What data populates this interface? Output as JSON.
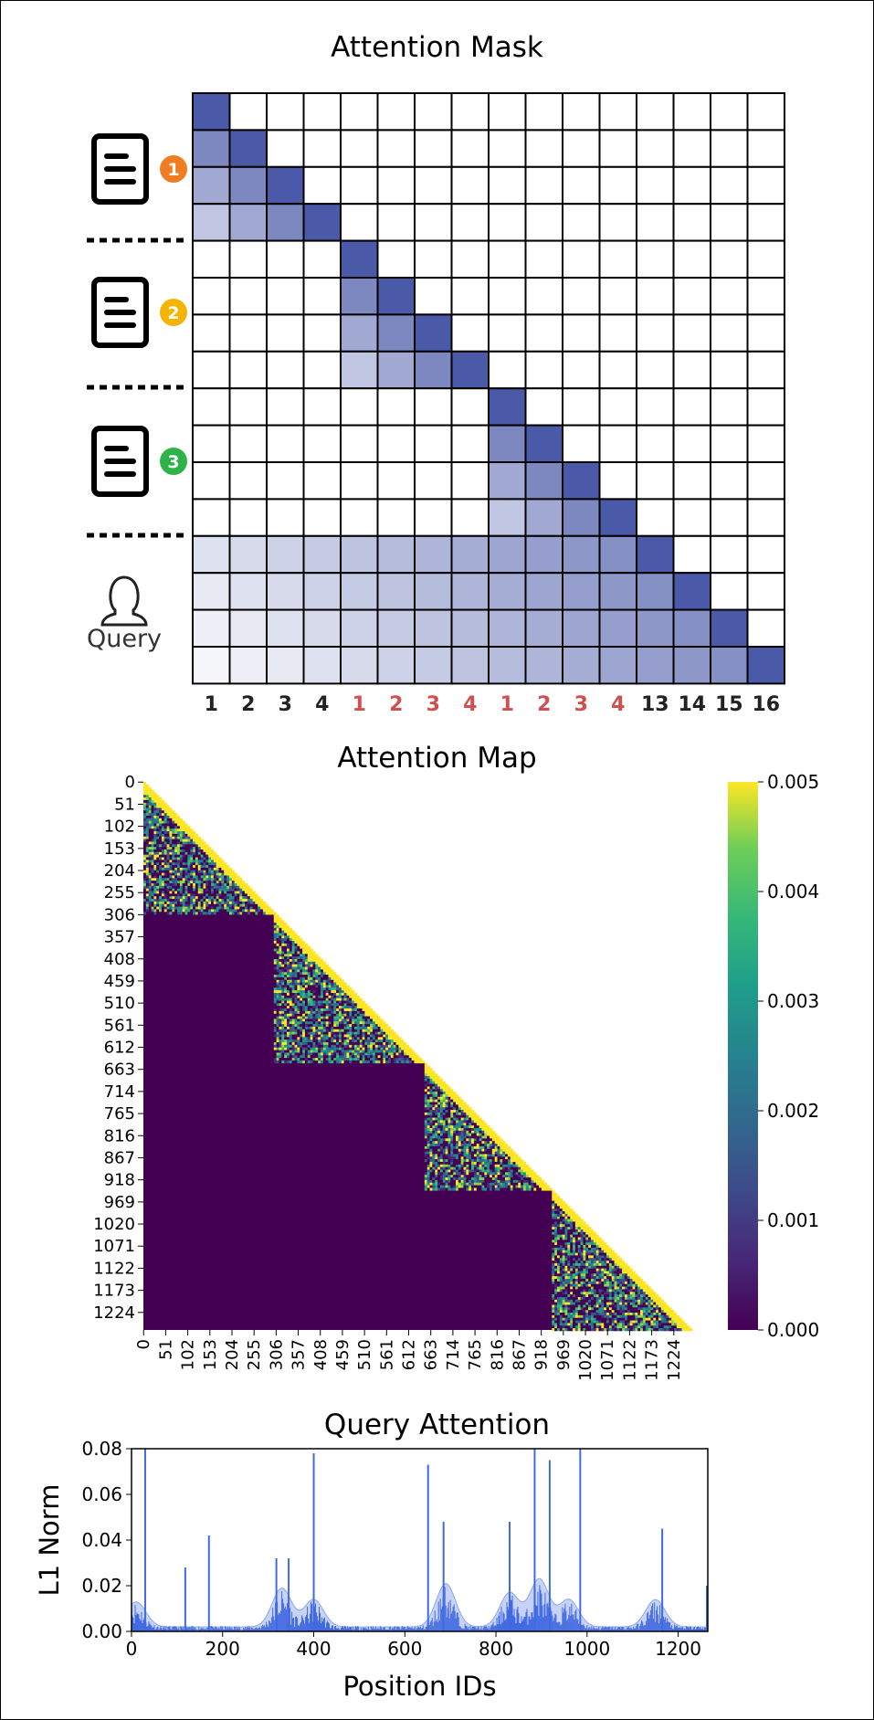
{
  "panels": {
    "mask_title": "Attention Mask",
    "map_title": "Attention Map",
    "query_title": "Query Attention"
  },
  "chart_data": [
    {
      "type": "heatmap",
      "title": "Attention Mask",
      "grid": [
        16,
        16
      ],
      "x_tick_labels": [
        "1",
        "2",
        "3",
        "4",
        "1",
        "2",
        "3",
        "4",
        "1",
        "2",
        "3",
        "4",
        "13",
        "14",
        "15",
        "16"
      ],
      "x_tick_colors": [
        "#222222",
        "#222222",
        "#222222",
        "#222222",
        "#d05050",
        "#d05050",
        "#d05050",
        "#d05050",
        "#d05050",
        "#d05050",
        "#d05050",
        "#d05050",
        "#222222",
        "#222222",
        "#222222",
        "#222222"
      ],
      "row_groups": [
        {
          "label": "1",
          "icon": "document-icon",
          "badge_color": "#f07d22",
          "rows": [
            0,
            3
          ]
        },
        {
          "label": "2",
          "icon": "document-icon",
          "badge_color": "#f4b400",
          "rows": [
            4,
            7
          ]
        },
        {
          "label": "3",
          "icon": "document-icon",
          "badge_color": "#2db34a",
          "rows": [
            8,
            11
          ]
        },
        {
          "label": "Query",
          "icon": "user-icon",
          "rows": [
            12,
            15
          ]
        }
      ],
      "cell_color": "#4a5aa8"
    },
    {
      "type": "heatmap",
      "title": "Attention Map",
      "x_tick_labels": [
        "0",
        "51",
        "102",
        "153",
        "204",
        "255",
        "306",
        "357",
        "408",
        "459",
        "510",
        "561",
        "612",
        "663",
        "714",
        "765",
        "816",
        "867",
        "918",
        "969",
        "1020",
        "1071",
        "1122",
        "1173",
        "1224"
      ],
      "y_tick_labels": [
        "0",
        "51",
        "102",
        "153",
        "204",
        "255",
        "306",
        "357",
        "408",
        "459",
        "510",
        "561",
        "612",
        "663",
        "714",
        "765",
        "816",
        "867",
        "918",
        "969",
        "1020",
        "1071",
        "1122",
        "1173",
        "1224"
      ],
      "colorbar": {
        "min": 0.0,
        "max": 0.005,
        "tick_labels": [
          "0.000",
          "0.001",
          "0.002",
          "0.003",
          "0.004",
          "0.005"
        ],
        "colormap": "viridis"
      },
      "blocks": [
        [
          0,
          300
        ],
        [
          301,
          648
        ],
        [
          649,
          942
        ],
        [
          943,
          1265
        ]
      ]
    },
    {
      "type": "bar",
      "title": "Query Attention",
      "xlabel": "Position IDs",
      "ylabel": "L1 Norm",
      "xlim": [
        0,
        1265
      ],
      "ylim": [
        0,
        0.08
      ],
      "x_tick_labels": [
        "0",
        "200",
        "400",
        "600",
        "800",
        "1000",
        "1200"
      ],
      "y_tick_labels": [
        "0.00",
        "0.02",
        "0.04",
        "0.06",
        "0.08"
      ],
      "color": "#4169e1",
      "spikes": [
        {
          "x": 30,
          "value": 0.08
        },
        {
          "x": 118,
          "value": 0.028
        },
        {
          "x": 170,
          "value": 0.042
        },
        {
          "x": 318,
          "value": 0.032
        },
        {
          "x": 345,
          "value": 0.032
        },
        {
          "x": 400,
          "value": 0.078
        },
        {
          "x": 651,
          "value": 0.073
        },
        {
          "x": 685,
          "value": 0.048
        },
        {
          "x": 830,
          "value": 0.048
        },
        {
          "x": 885,
          "value": 0.08
        },
        {
          "x": 918,
          "value": 0.075
        },
        {
          "x": 985,
          "value": 0.08
        },
        {
          "x": 1165,
          "value": 0.045
        },
        {
          "x": 1263,
          "value": 0.02
        }
      ],
      "density_peaks": [
        {
          "x": 10,
          "value": 0.011
        },
        {
          "x": 330,
          "value": 0.017
        },
        {
          "x": 400,
          "value": 0.012
        },
        {
          "x": 690,
          "value": 0.019
        },
        {
          "x": 830,
          "value": 0.015
        },
        {
          "x": 895,
          "value": 0.021
        },
        {
          "x": 960,
          "value": 0.012
        },
        {
          "x": 1150,
          "value": 0.012
        }
      ]
    }
  ]
}
